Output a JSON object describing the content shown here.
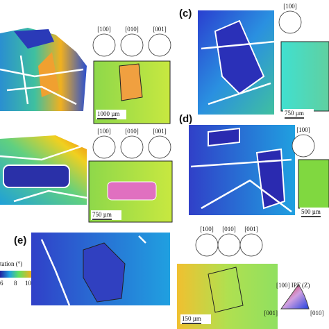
{
  "panels": [
    {
      "label": null,
      "pole_figures": [
        "[100]",
        "[010]",
        "[001]"
      ],
      "scale_bar": "1000 µm"
    },
    {
      "label": null,
      "pole_figures": [
        "[100]",
        "[010]",
        "[001]"
      ],
      "scale_bar": "750 µm"
    },
    {
      "label": "(c)",
      "pole_figures": [
        "[100]"
      ],
      "scale_bar": "750 µm"
    },
    {
      "label": "(d)",
      "pole_figures": [
        "[100]"
      ],
      "scale_bar": "500 µm"
    },
    {
      "label": "(e)",
      "pole_figures": [
        "[100]",
        "[010]",
        "[001]"
      ],
      "scale_bar": "150 µm"
    }
  ],
  "colorbar": {
    "label": "tation (°)",
    "ticks": [
      "6",
      "8",
      "10"
    ]
  },
  "ipf_key": {
    "title": "[100] IPF (Z)",
    "corners": [
      "[001]",
      "[010]"
    ]
  }
}
